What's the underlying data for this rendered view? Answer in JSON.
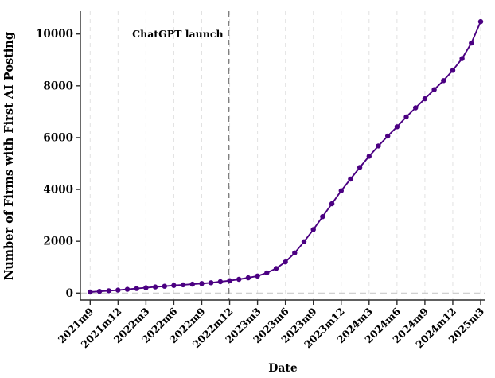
{
  "figure": {
    "background": "#ffffff",
    "axis_color": "#2b2b2b",
    "grid_color": "#e2e2e2",
    "zero_line_color": "#c9c9c9",
    "accent_color": "#4B0082"
  },
  "annotation": {
    "label": "ChatGPT launch",
    "text_color": "#9a9a9a",
    "line_color": "#808080",
    "line_style": "dashed",
    "line_x": "2022m12"
  },
  "chart_data": {
    "type": "line",
    "title": "",
    "xlabel": "Date",
    "ylabel": "Number of Firms with First AI Posting",
    "ylim": [
      0,
      10800
    ],
    "yticks": [
      0,
      2000,
      4000,
      6000,
      8000,
      10000
    ],
    "xtick_labels": [
      "2021m9",
      "2021m12",
      "2022m3",
      "2022m6",
      "2022m9",
      "2022m12",
      "2023m3",
      "2023m6",
      "2023m9",
      "2023m12",
      "2024m3",
      "2024m6",
      "2024m9",
      "2024m12",
      "2025m3"
    ],
    "grid": "vertical-dashed",
    "legend": "none",
    "marker": "circle",
    "series": [
      {
        "name": "Number of Firms with First AI Posting",
        "color": "#4B0082",
        "x": [
          "2021m9",
          "2021m10",
          "2021m11",
          "2021m12",
          "2022m1",
          "2022m2",
          "2022m3",
          "2022m4",
          "2022m5",
          "2022m6",
          "2022m7",
          "2022m8",
          "2022m9",
          "2022m10",
          "2022m11",
          "2022m12",
          "2023m1",
          "2023m2",
          "2023m3",
          "2023m4",
          "2023m5",
          "2023m6",
          "2023m7",
          "2023m8",
          "2023m9",
          "2023m10",
          "2023m11",
          "2023m12",
          "2024m1",
          "2024m2",
          "2024m3",
          "2024m4",
          "2024m5",
          "2024m6",
          "2024m7",
          "2024m8",
          "2024m9",
          "2024m10",
          "2024m11",
          "2024m12",
          "2025m1",
          "2025m2",
          "2025m3"
        ],
        "values": [
          40,
          65,
          90,
          115,
          145,
          175,
          205,
          235,
          265,
          295,
          320,
          345,
          370,
          400,
          440,
          480,
          530,
          590,
          660,
          780,
          950,
          1200,
          1550,
          1980,
          2450,
          2950,
          3450,
          3950,
          4400,
          4850,
          5280,
          5680,
          6060,
          6420,
          6800,
          7150,
          7500,
          7850,
          8200,
          8600,
          9050,
          9650,
          10480
        ]
      }
    ],
    "annotations": [
      {
        "type": "vline",
        "x": "2022m12",
        "label": "ChatGPT launch"
      },
      {
        "type": "hline",
        "y": 0
      }
    ]
  }
}
